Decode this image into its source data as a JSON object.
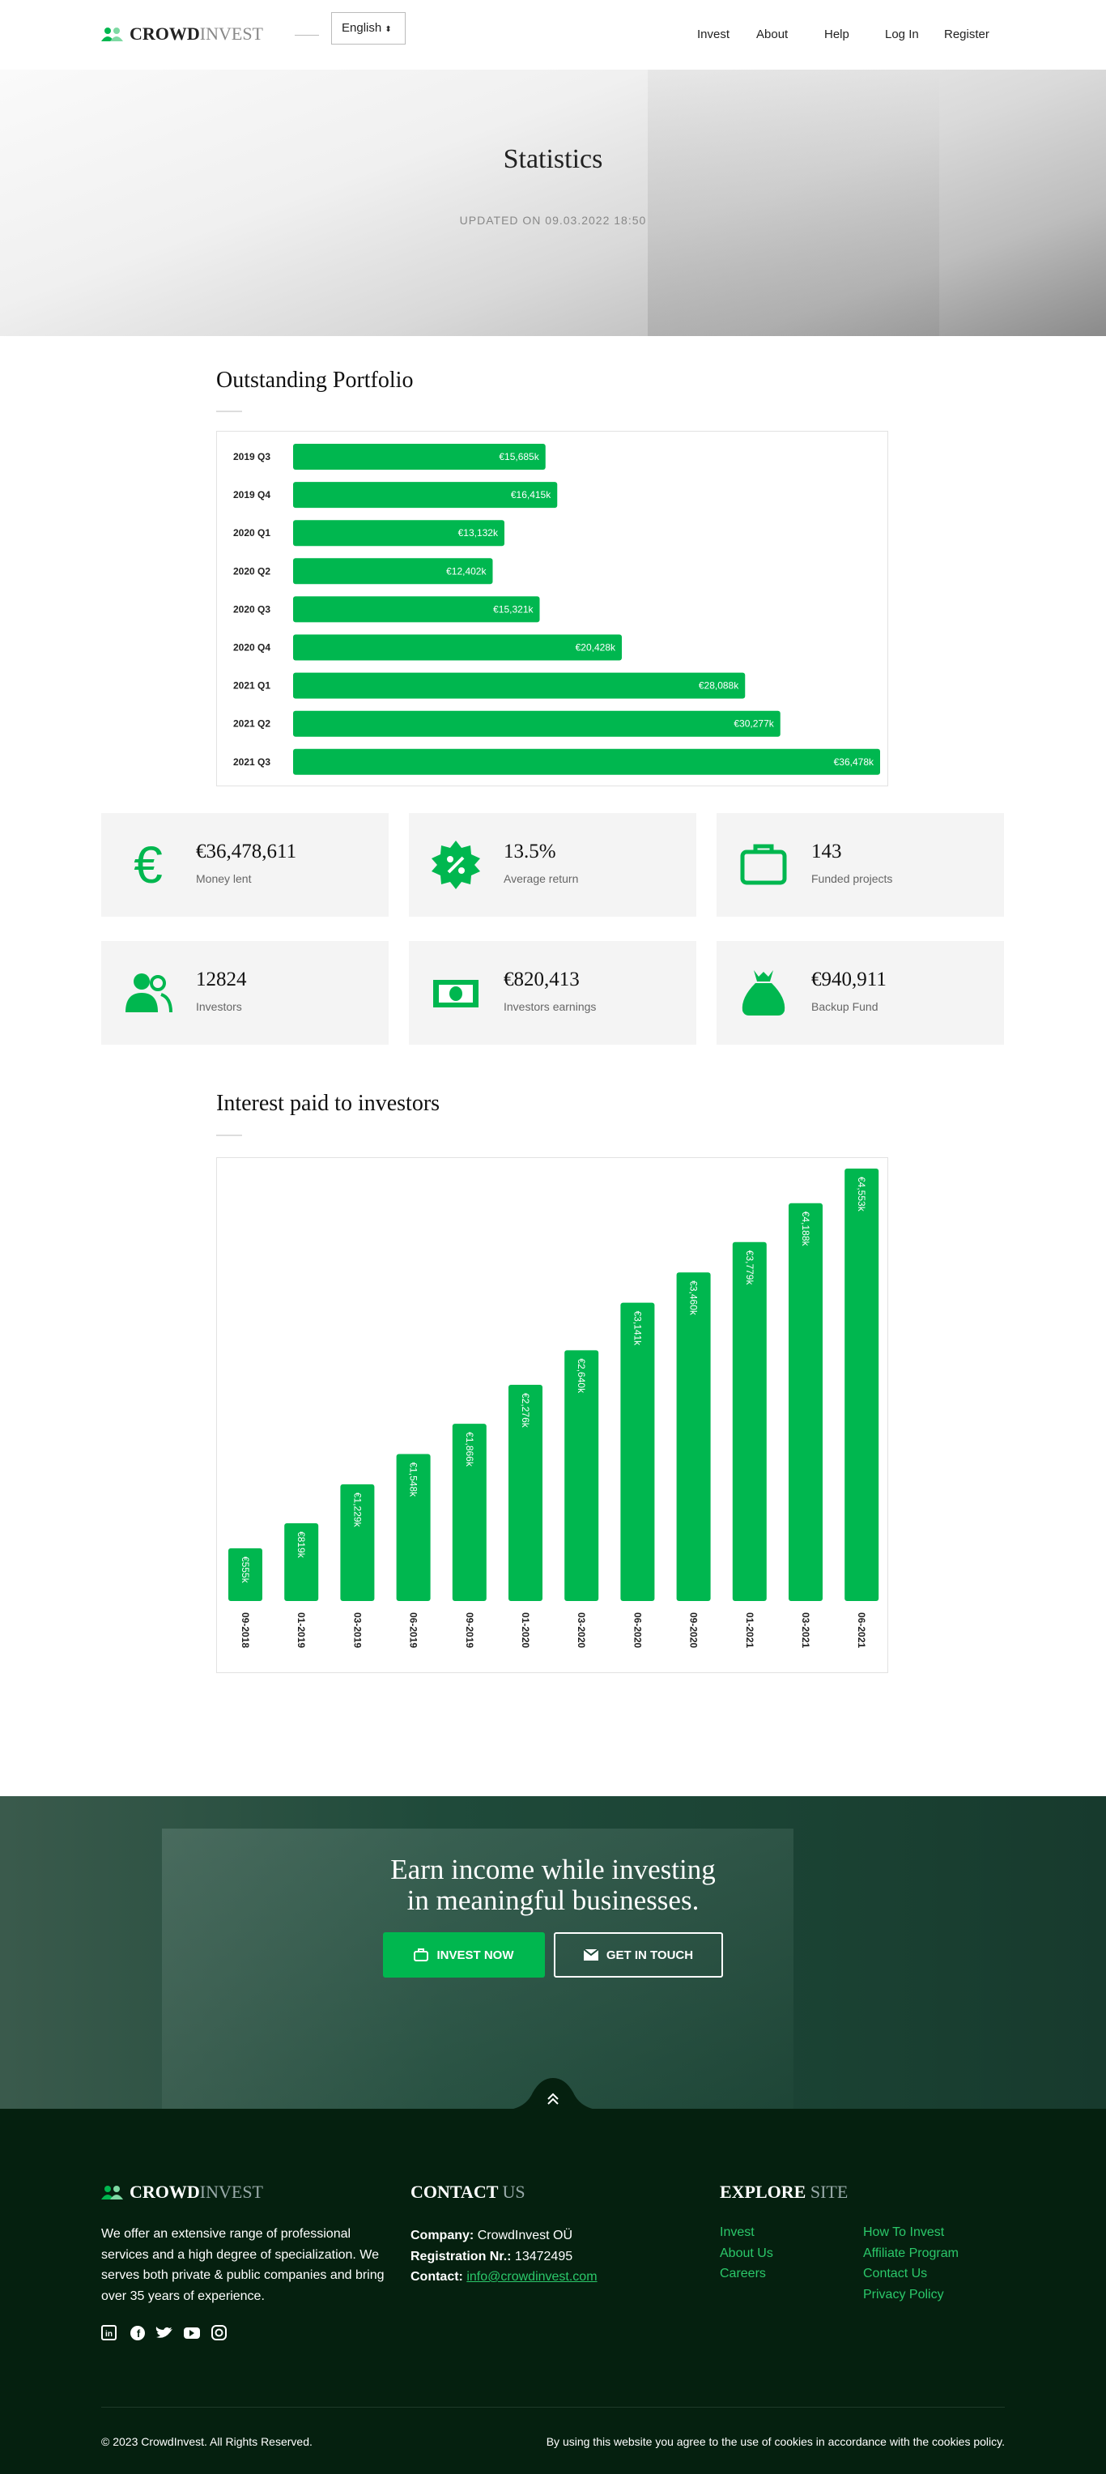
{
  "header": {
    "logo_bold": "CROWD",
    "logo_light": "INVEST",
    "language": "English",
    "nav": [
      "Invest",
      "About",
      "Help",
      "Log In",
      "Register"
    ]
  },
  "hero": {
    "title": "Statistics",
    "updated": "UPDATED ON 09.03.2022 18:50"
  },
  "chart_data": [
    {
      "type": "barh",
      "title": "Outstanding Portfolio",
      "color": "#00b74f",
      "categories": [
        "2019 Q3",
        "2019 Q4",
        "2020 Q1",
        "2020 Q2",
        "2020 Q3",
        "2020 Q4",
        "2021 Q1",
        "2021 Q2",
        "2021 Q3"
      ],
      "values": [
        15685,
        16415,
        13132,
        12402,
        15321,
        20428,
        28088,
        30277,
        36478
      ],
      "value_labels": [
        "€15,685k",
        "€16,415k",
        "€13,132k",
        "€12,402k",
        "€15,321k",
        "€20,428k",
        "€28,088k",
        "€30,277k",
        "€36,478k"
      ]
    },
    {
      "type": "bar",
      "title": "Interest paid to investors",
      "color": "#00b74f",
      "categories": [
        "09-2018",
        "01-2019",
        "03-2019",
        "06-2019",
        "09-2019",
        "01-2020",
        "03-2020",
        "06-2020",
        "09-2020",
        "01-2021",
        "03-2021",
        "06-2021"
      ],
      "values": [
        555,
        819,
        1229,
        1548,
        1866,
        2276,
        2640,
        3141,
        3460,
        3779,
        4188,
        4553
      ],
      "value_labels": [
        "€555k",
        "€819k",
        "€1,229k",
        "€1,548k",
        "€1,866k",
        "€2,276k",
        "€2,640k",
        "€3,141k",
        "€3,460k",
        "€3,779k",
        "€4,188k",
        "€4,553k"
      ]
    }
  ],
  "stats": [
    {
      "value": "€36,478,611",
      "label": "Money lent"
    },
    {
      "value": "13.5%",
      "label": "Average return"
    },
    {
      "value": "143",
      "label": "Funded projects"
    },
    {
      "value": "12824",
      "label": "Investors"
    },
    {
      "value": "€820,413",
      "label": "Investors earnings"
    },
    {
      "value": "€940,911",
      "label": "Backup Fund"
    }
  ],
  "cta": {
    "title_line1": "Earn income while investing",
    "title_line2": "in meaningful businesses.",
    "button_primary": "INVEST NOW",
    "button_secondary": "GET IN TOUCH"
  },
  "footer": {
    "about": "We offer an extensive range of professional services and a high degree of specialization. We serves both private & public companies and bring over 35 years of experience.",
    "contact_heading": [
      "CONTACT",
      "US"
    ],
    "contact": [
      [
        "Company:",
        "CrowdInvest OÜ"
      ],
      [
        "Registration Nr.:",
        "13472495"
      ],
      [
        "Contact:",
        "info@crowdinvest.com"
      ]
    ],
    "explore_heading": [
      "EXPLORE",
      "SITE"
    ],
    "links": [
      "Invest",
      "About Us",
      "Careers",
      "How To Invest",
      "Affiliate Program",
      "Contact Us",
      "Privacy Policy"
    ],
    "copyright": "© 2023 CrowdInvest. All Rights Reserved.",
    "cookies": "By using this website you agree to the use of cookies in accordance with the cookies policy."
  }
}
